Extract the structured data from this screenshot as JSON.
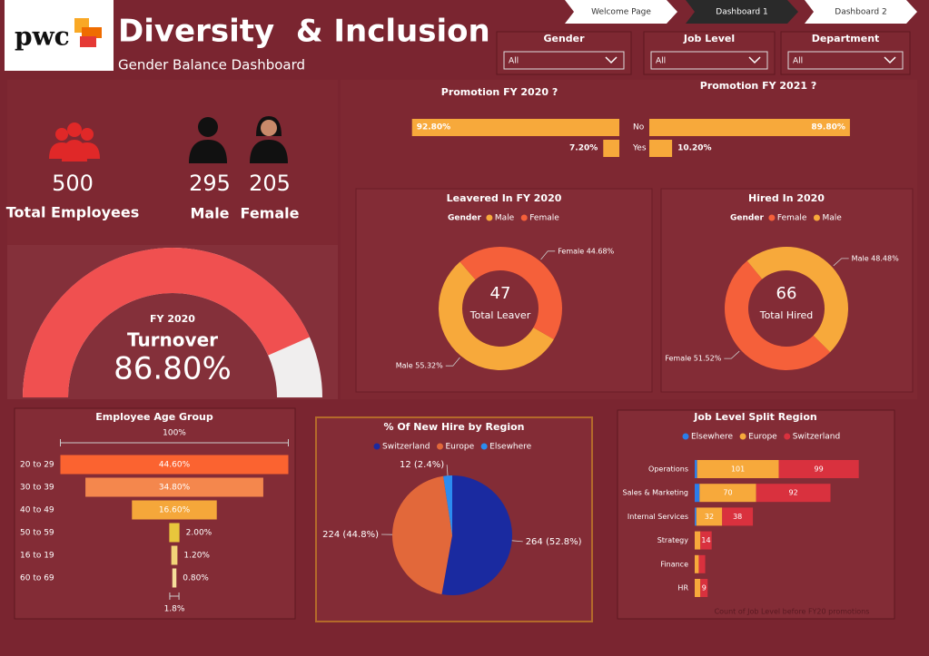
{
  "header": {
    "logo": "pwc",
    "title": "Diversity  & Inclusion",
    "subtitle": "Gender Balance Dashboard"
  },
  "nav": [
    "Welcome Page",
    "Dashboard 1",
    "Dashboard 2"
  ],
  "filters": [
    {
      "label": "Gender",
      "value": "All"
    },
    {
      "label": "Job Level",
      "value": "All"
    },
    {
      "label": "Department",
      "value": "All"
    }
  ],
  "kpis": {
    "total": {
      "value": 500,
      "label": "Total Employees"
    },
    "male": {
      "value": 295,
      "label": "Male"
    },
    "female": {
      "value": 205,
      "label": "Female"
    }
  },
  "chart_data": [
    {
      "type": "gauge",
      "subtitle": "FY 2020",
      "title": "Turnover",
      "value": 86.8,
      "value_label": "86.80%",
      "ylim": [
        0,
        100
      ],
      "color": "#f05050",
      "track_color": "#f0eeee"
    },
    {
      "type": "mirror_bar",
      "categories": [
        "No",
        "Yes"
      ],
      "color": "#f7a93b",
      "xlim": [
        0,
        100
      ],
      "series": [
        {
          "name": "Promotion FY 2020 ?",
          "values": [
            92.8,
            7.2
          ],
          "value_labels": [
            "92.80%",
            "7.20%"
          ]
        },
        {
          "name": "Promotion FY 2021 ?",
          "values": [
            89.8,
            10.2
          ],
          "value_labels": [
            "89.80%",
            "10.20%"
          ]
        }
      ]
    },
    {
      "type": "donut",
      "title": "Leavered In FY 2020",
      "legend_title": "Gender",
      "categories": [
        "Male",
        "Female"
      ],
      "values": [
        55.32,
        44.68
      ],
      "value_labels": [
        "Male 55.32%",
        "Female 44.68%"
      ],
      "colors": [
        "#f7a93b",
        "#f5603a"
      ],
      "center_value": 47,
      "center_label": "Total Leaver"
    },
    {
      "type": "donut",
      "title": "Hired In 2020",
      "legend_title": "Gender",
      "categories": [
        "Female",
        "Male"
      ],
      "values": [
        51.52,
        48.48
      ],
      "value_labels": [
        "Female 51.52%",
        "Male 48.48%"
      ],
      "colors": [
        "#f5603a",
        "#f7a93b"
      ],
      "center_value": 66,
      "center_label": "Total Hired"
    },
    {
      "type": "funnel",
      "title": "Employee Age Group",
      "categories": [
        "20 to 29",
        "30 to 39",
        "40 to 49",
        "50 to 59",
        "16 to 19",
        "60 to 69"
      ],
      "values": [
        44.6,
        34.8,
        16.6,
        2.0,
        1.2,
        0.8
      ],
      "value_labels": [
        "44.60%",
        "34.80%",
        "16.60%",
        "2.00%",
        "1.20%",
        "0.80%"
      ],
      "colors": [
        "#fb6330",
        "#f4874d",
        "#f5a73a",
        "#e8c63c",
        "#f2d478",
        "#f5de9a"
      ],
      "top": {
        "value": 100,
        "label": "100%"
      },
      "bottom": {
        "value": 1.8,
        "label": "1.8%"
      }
    },
    {
      "type": "pie",
      "title": "% Of New Hire by Region",
      "categories": [
        "Switzerland",
        "Europe",
        "Elsewhere"
      ],
      "values": [
        264,
        224,
        12
      ],
      "value_labels": [
        "264 (52.8%)",
        "224 (44.8%)",
        "12 (2.4%)"
      ],
      "colors": [
        "#1a2aa0",
        "#e2683a",
        "#2b8cf0"
      ]
    },
    {
      "type": "stacked_bar",
      "title": "Job Level Split Region",
      "xlabel": "Count of Job Level before FY20 promotions",
      "categories": [
        "Operations",
        "Sales & Marketing",
        "Internal Services",
        "Strategy",
        "Finance",
        "HR"
      ],
      "series": [
        {
          "name": "Elsewhere",
          "color": "#2b7de9",
          "values": [
            3,
            6,
            2,
            0,
            0,
            0
          ]
        },
        {
          "name": "Europe",
          "color": "#f7a93b",
          "values": [
            101,
            70,
            32,
            7,
            5,
            7
          ]
        },
        {
          "name": "Switzerland",
          "color": "#d9313e",
          "values": [
            99,
            92,
            38,
            14,
            8,
            9
          ]
        }
      ]
    }
  ]
}
